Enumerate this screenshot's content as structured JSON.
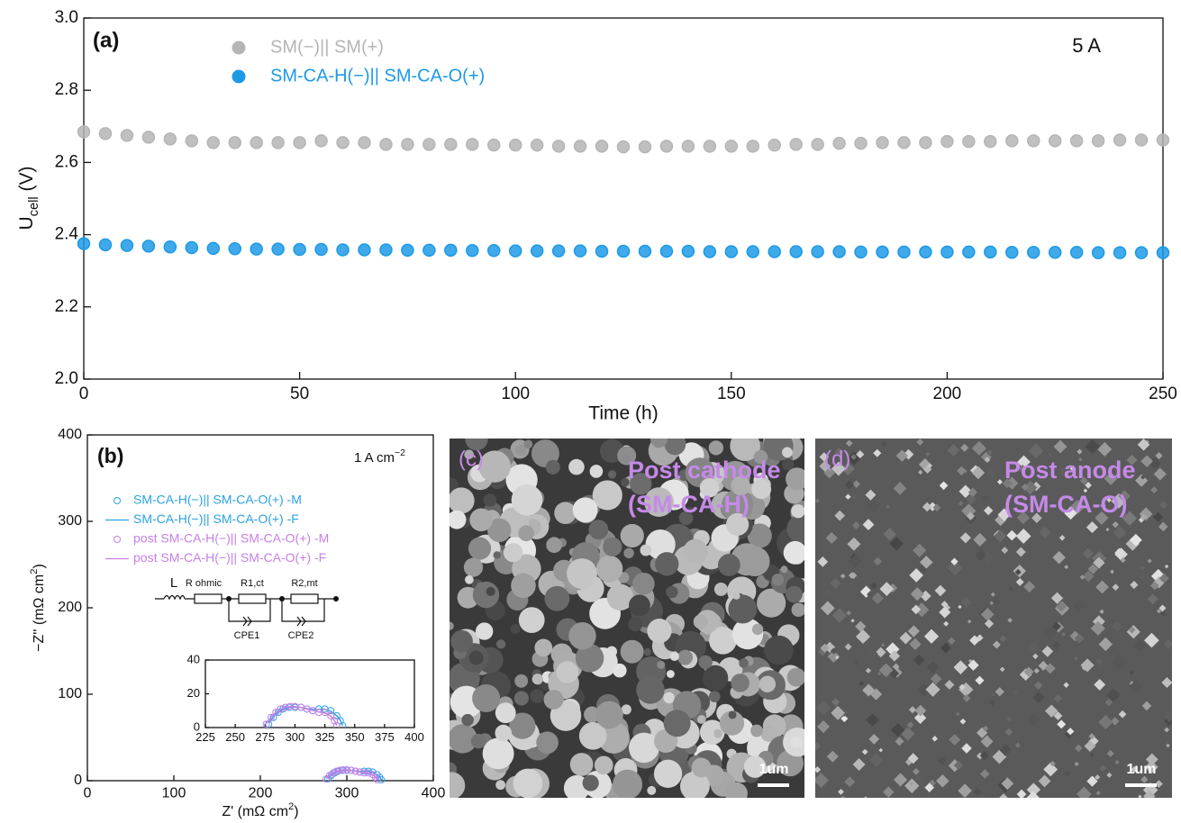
{
  "chart_data": [
    {
      "type": "scatter",
      "panel": "(a)",
      "annotation": "5 A",
      "ylabel": [
        "U",
        "cell",
        " (V)"
      ],
      "xlabel": "Time (h)",
      "xlim": [
        0,
        250
      ],
      "xticks": [
        0,
        50,
        100,
        150,
        200,
        250
      ],
      "ylim": [
        2.0,
        3.0
      ],
      "yticks": [
        {
          "value": 2.0,
          "label": "2.0"
        },
        2.2,
        2.4,
        2.6,
        2.8,
        {
          "value": 3.0,
          "label": "3.0"
        }
      ],
      "legend": "upper left",
      "x": [
        0,
        5,
        10,
        15,
        20,
        25,
        30,
        35,
        40,
        45,
        50,
        55,
        60,
        65,
        70,
        75,
        80,
        85,
        90,
        95,
        100,
        105,
        110,
        115,
        120,
        125,
        130,
        135,
        140,
        145,
        150,
        155,
        160,
        165,
        170,
        175,
        180,
        185,
        190,
        195,
        200,
        205,
        210,
        215,
        220,
        225,
        230,
        235,
        240,
        245,
        250
      ],
      "series": [
        {
          "name": "SM(−)|| SM(+)",
          "color": "#b5b5b5",
          "marker": "circle",
          "values": [
            2.685,
            2.68,
            2.675,
            2.67,
            2.665,
            2.66,
            2.655,
            2.655,
            2.655,
            2.655,
            2.655,
            2.66,
            2.655,
            2.655,
            2.65,
            2.65,
            2.65,
            2.65,
            2.65,
            2.648,
            2.648,
            2.648,
            2.645,
            2.645,
            2.645,
            2.643,
            2.643,
            2.645,
            2.645,
            2.645,
            2.645,
            2.645,
            2.648,
            2.65,
            2.65,
            2.653,
            2.653,
            2.655,
            2.655,
            2.655,
            2.658,
            2.658,
            2.658,
            2.66,
            2.66,
            2.66,
            2.66,
            2.66,
            2.662,
            2.662,
            2.662
          ]
        },
        {
          "name": "SM-CA-H(−)|| SM-CA-O(+)",
          "color": "#1d9ae6",
          "marker": "circle",
          "values": [
            2.375,
            2.372,
            2.37,
            2.368,
            2.366,
            2.364,
            2.362,
            2.361,
            2.36,
            2.36,
            2.359,
            2.359,
            2.358,
            2.358,
            2.358,
            2.357,
            2.357,
            2.357,
            2.356,
            2.356,
            2.355,
            2.355,
            2.355,
            2.355,
            2.354,
            2.354,
            2.354,
            2.354,
            2.354,
            2.353,
            2.353,
            2.353,
            2.353,
            2.353,
            2.353,
            2.353,
            2.352,
            2.352,
            2.352,
            2.352,
            2.352,
            2.352,
            2.352,
            2.351,
            2.351,
            2.351,
            2.351,
            2.35,
            2.35,
            2.35,
            2.35
          ]
        }
      ]
    },
    {
      "type": "scatter",
      "panel": "(b)",
      "annotation": [
        "1 A cm",
        "−2"
      ],
      "ylabel": [
        "−Z'' (mΩ cm",
        "2",
        ")"
      ],
      "xlabel": [
        "Z' (mΩ cm",
        "2",
        ")"
      ],
      "xlim": [
        0,
        400
      ],
      "xticks": [
        0,
        100,
        200,
        300,
        400
      ],
      "ylim": [
        0,
        400
      ],
      "yticks": [
        0,
        100,
        200,
        300,
        400
      ],
      "legend": "upper left",
      "circuit": [
        "L",
        "R ohmic",
        "R1,ct",
        "R2,mt",
        "CPE1",
        "CPE2"
      ],
      "inset": {
        "xlim": [
          225,
          400
        ],
        "xticks": [
          225,
          250,
          275,
          300,
          325,
          350,
          375,
          400
        ],
        "ylim": [
          0,
          40
        ],
        "yticks": [
          0,
          20,
          40
        ]
      },
      "series": [
        {
          "name": "SM-CA-H(−)|| SM-CA-O(+) -M",
          "color": "#2aa3e0",
          "marker": "circle",
          "x": [
            278,
            282,
            286,
            290,
            295,
            300,
            305,
            310,
            315,
            320,
            325,
            330,
            335,
            338,
            340
          ],
          "values": [
            2,
            6,
            9,
            11,
            12,
            12,
            12,
            11,
            10,
            11,
            11,
            10,
            7,
            4,
            1
          ]
        },
        {
          "name": "SM-CA-H(−)|| SM-CA-O(+) -F",
          "color": "#2aa3e0",
          "marker": "line",
          "x": [
            278,
            282,
            286,
            290,
            295,
            300,
            305,
            310,
            315,
            320,
            325,
            330,
            335,
            338,
            340
          ],
          "values": [
            2.5,
            6.5,
            9,
            10.8,
            11.8,
            12.1,
            11.9,
            11.2,
            10.6,
            10.8,
            10.9,
            9.6,
            7,
            4.3,
            1.2
          ]
        },
        {
          "name": "post SM-CA-H(−)|| SM-CA-O(+) -M",
          "color": "#c67fe6",
          "marker": "circle",
          "x": [
            276,
            280,
            284,
            288,
            292,
            296,
            300,
            305,
            310,
            315,
            320,
            325,
            330,
            333,
            335
          ],
          "values": [
            2,
            6,
            9,
            11,
            12,
            12.5,
            12.5,
            12,
            11,
            10,
            9,
            9,
            7,
            4,
            1
          ]
        },
        {
          "name": "post SM-CA-H(−)|| SM-CA-O(+) -F",
          "color": "#c67fe6",
          "marker": "line",
          "x": [
            276,
            280,
            284,
            288,
            292,
            296,
            300,
            305,
            310,
            315,
            320,
            325,
            330,
            333,
            335
          ],
          "values": [
            2.4,
            6.3,
            9.1,
            10.9,
            12,
            12.4,
            12.4,
            11.9,
            11,
            10.1,
            9.3,
            8.6,
            6.8,
            4.2,
            1.3
          ]
        }
      ]
    }
  ],
  "images": [
    {
      "label": "(c)",
      "caption": [
        "Post cathode",
        "(SM-CA-H)"
      ],
      "scale": "1um"
    },
    {
      "label": "(d)",
      "caption": [
        "Post anode",
        "(SM-CA-O)"
      ],
      "scale": "1um"
    }
  ]
}
